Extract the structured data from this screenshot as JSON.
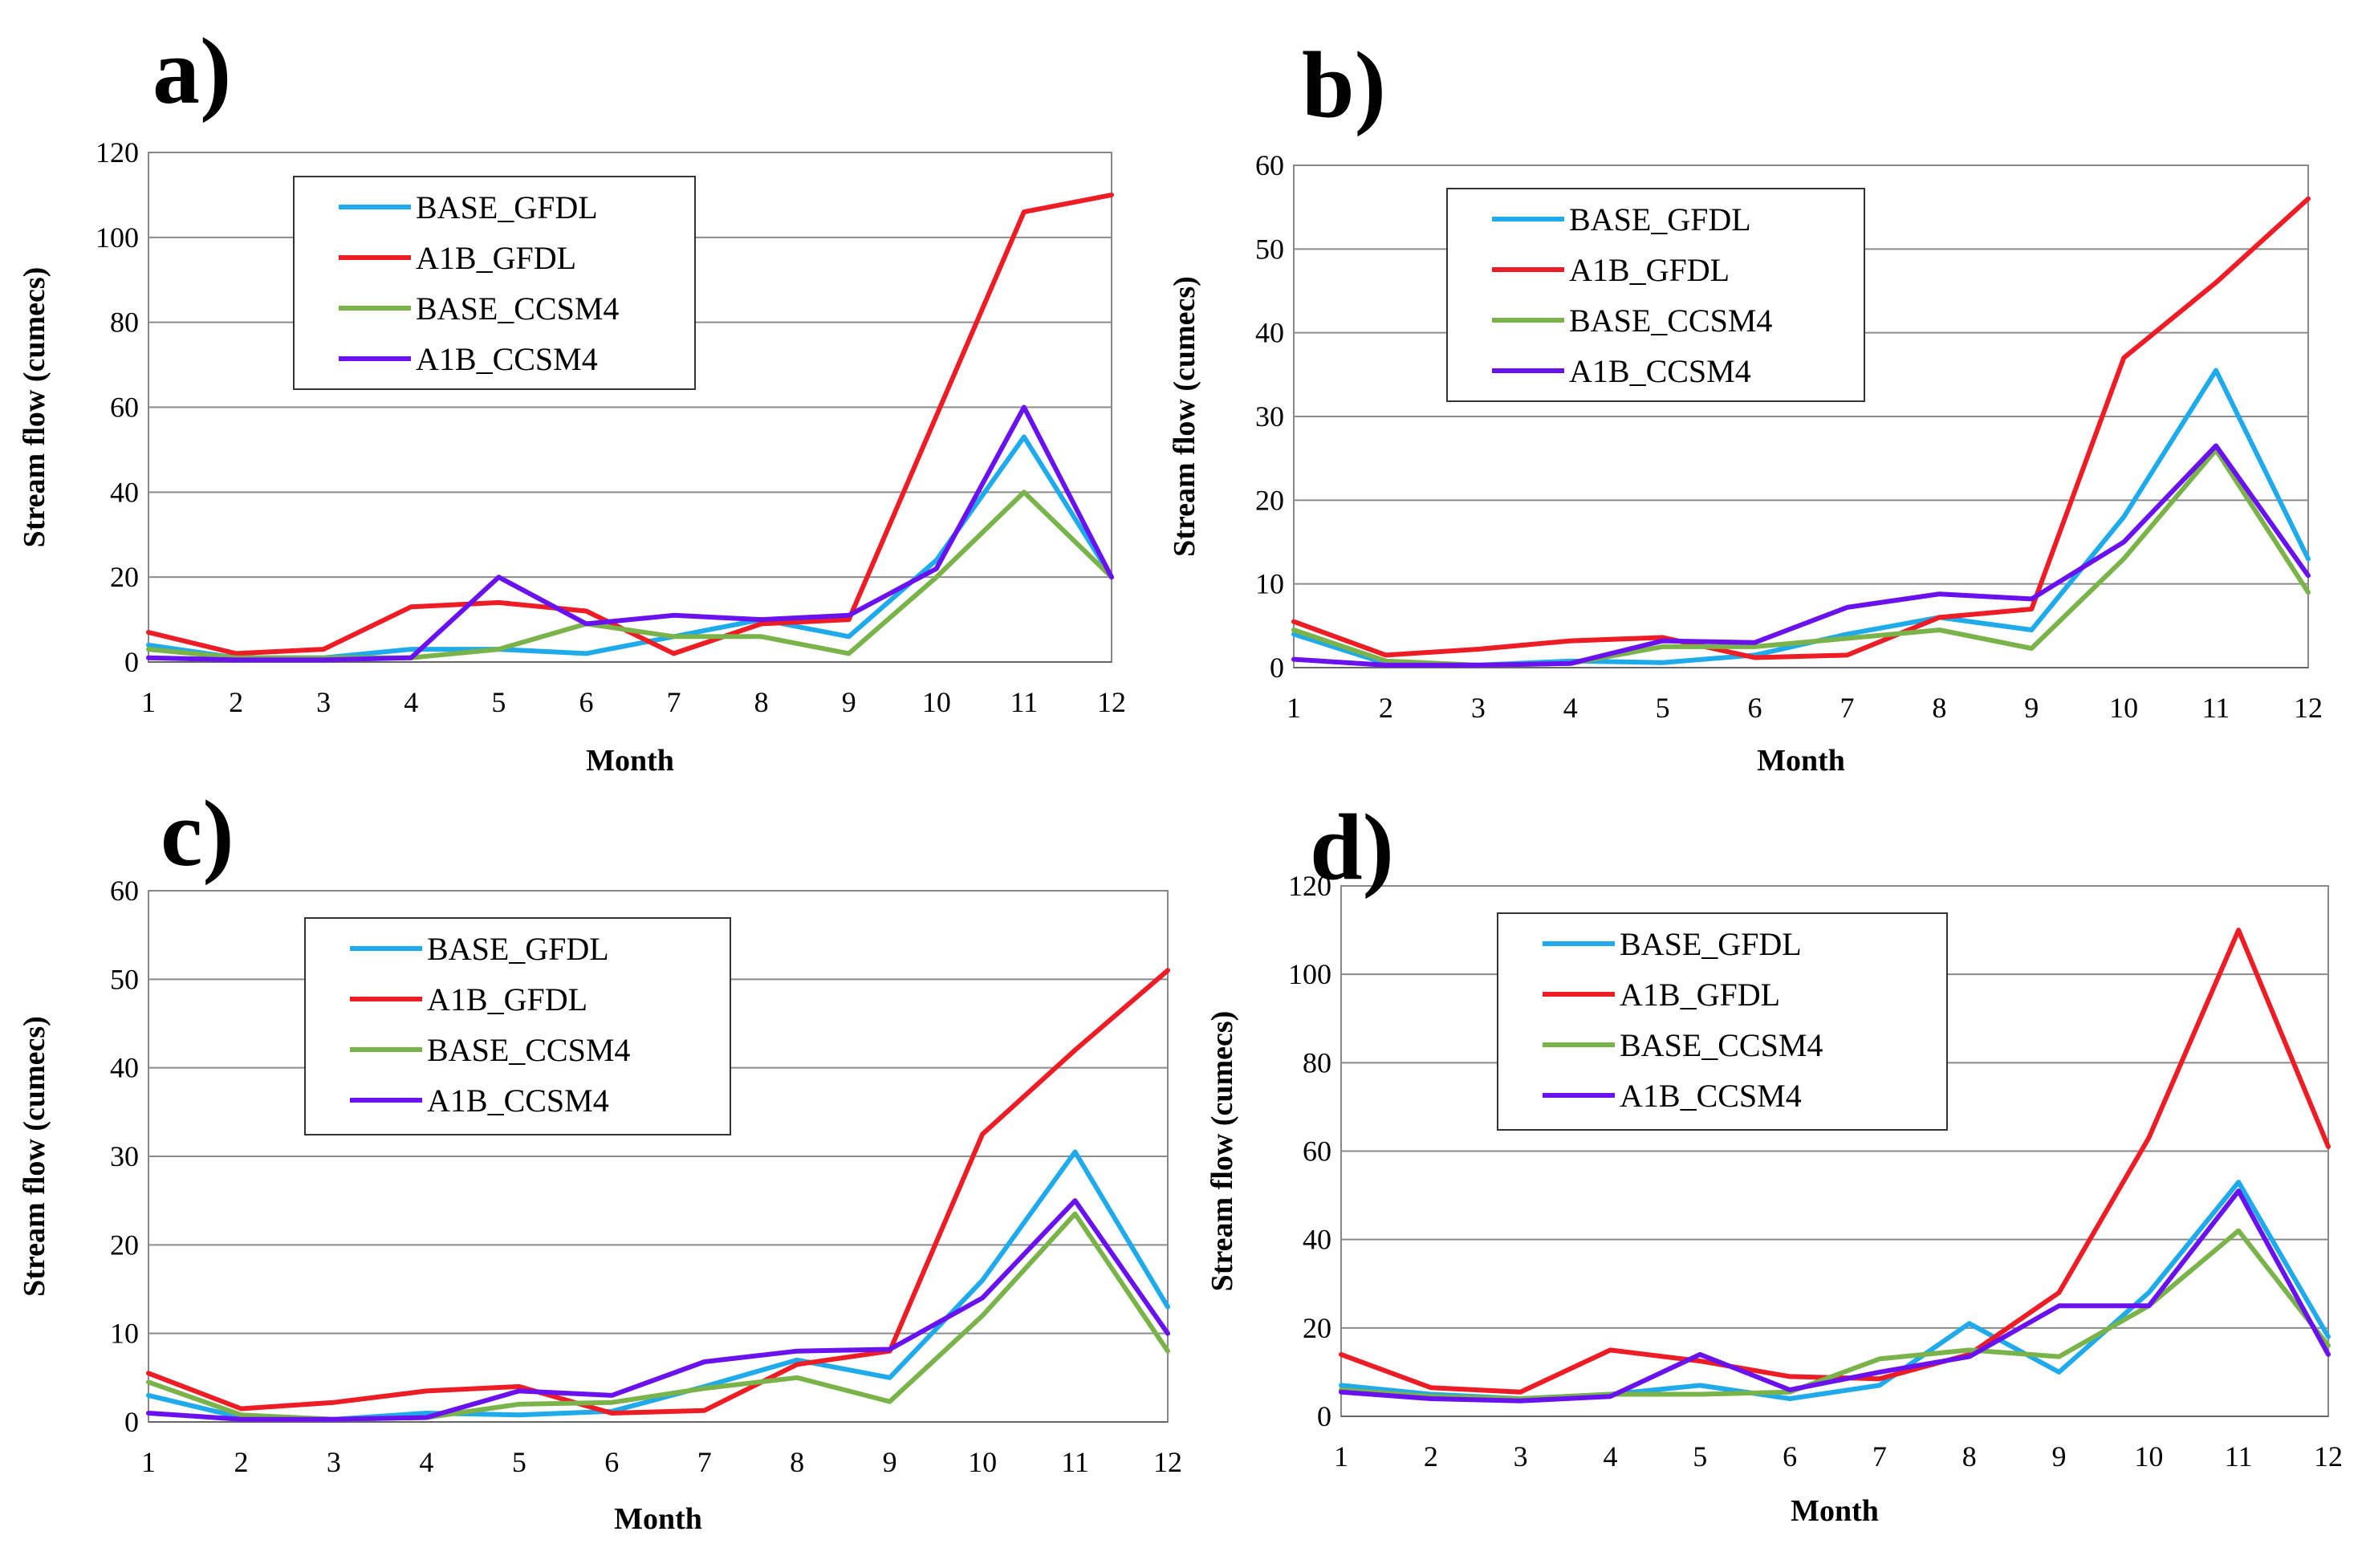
{
  "figure": {
    "series_colors": {
      "BASE_GFDL": "#1eaaeb",
      "A1B_GFDL": "#ee1c24",
      "BASE_CCSM4": "#7ab34a",
      "A1B_CCSM4": "#6a11f0"
    }
  },
  "chart_data": [
    {
      "type": "line",
      "panel": "a)",
      "xlabel": "Month",
      "ylabel": "Stream flow (cumecs)",
      "x": [
        1,
        2,
        3,
        4,
        5,
        6,
        7,
        8,
        9,
        10,
        11,
        12
      ],
      "xticks": [
        "1",
        "2",
        "3",
        "4",
        "5",
        "6",
        "7",
        "8",
        "9",
        "10",
        "11",
        "12"
      ],
      "ylim": [
        0,
        120
      ],
      "yticks": [
        "0",
        "20",
        "40",
        "60",
        "80",
        "100",
        "120"
      ],
      "grid": true,
      "legend_position": "top-left",
      "series": [
        {
          "name": "BASE_GFDL",
          "values": [
            4,
            1,
            1,
            3,
            3,
            2,
            6,
            10,
            6,
            24,
            53,
            20
          ]
        },
        {
          "name": "A1B_GFDL",
          "values": [
            7,
            2,
            3,
            13,
            14,
            12,
            2,
            9,
            10,
            58,
            106,
            110
          ]
        },
        {
          "name": "BASE_CCSM4",
          "values": [
            3,
            1,
            1,
            1,
            3,
            9,
            6,
            6,
            2,
            20,
            40,
            20
          ]
        },
        {
          "name": "A1B_CCSM4",
          "values": [
            1,
            0.5,
            0.5,
            1,
            20,
            9,
            11,
            10,
            11,
            22,
            60,
            20
          ]
        }
      ]
    },
    {
      "type": "line",
      "panel": "b)",
      "xlabel": "Month",
      "ylabel": "Stream flow (cumecs)",
      "x": [
        1,
        2,
        3,
        4,
        5,
        6,
        7,
        8,
        9,
        10,
        11,
        12
      ],
      "xticks": [
        "1",
        "2",
        "3",
        "4",
        "5",
        "6",
        "7",
        "8",
        "9",
        "10",
        "11",
        "12"
      ],
      "ylim": [
        0,
        60
      ],
      "yticks": [
        "0",
        "10",
        "20",
        "30",
        "40",
        "50",
        "60"
      ],
      "grid": true,
      "legend_position": "top-left",
      "series": [
        {
          "name": "BASE_GFDL",
          "values": [
            4,
            0.5,
            0.3,
            0.8,
            0.6,
            1.5,
            4,
            6,
            4.5,
            18,
            35.5,
            13
          ]
        },
        {
          "name": "A1B_GFDL",
          "values": [
            5.5,
            1.5,
            2.2,
            3.2,
            3.6,
            1.2,
            1.5,
            6,
            7,
            37,
            46,
            56
          ]
        },
        {
          "name": "BASE_CCSM4",
          "values": [
            4.5,
            0.8,
            0.3,
            0.5,
            2.5,
            2.5,
            3.5,
            4.5,
            2.3,
            13,
            26,
            9
          ]
        },
        {
          "name": "A1B_CCSM4",
          "values": [
            1,
            0.3,
            0.3,
            0.5,
            3.2,
            3,
            7.2,
            8.8,
            8.2,
            15,
            26.5,
            11
          ]
        }
      ]
    },
    {
      "type": "line",
      "panel": "c)",
      "xlabel": "Month",
      "ylabel": "Stream flow (cumecs)",
      "x": [
        1,
        2,
        3,
        4,
        5,
        6,
        7,
        8,
        9,
        10,
        11,
        12
      ],
      "xticks": [
        "1",
        "2",
        "3",
        "4",
        "5",
        "6",
        "7",
        "8",
        "9",
        "10",
        "11",
        "12"
      ],
      "ylim": [
        0,
        60
      ],
      "yticks": [
        "0",
        "10",
        "20",
        "30",
        "40",
        "50",
        "60"
      ],
      "grid": true,
      "legend_position": "top-center",
      "series": [
        {
          "name": "BASE_GFDL",
          "values": [
            3,
            0.5,
            0.3,
            1,
            0.8,
            1.2,
            4,
            7,
            5,
            16,
            30.5,
            13
          ]
        },
        {
          "name": "A1B_GFDL",
          "values": [
            5.5,
            1.5,
            2.2,
            3.5,
            4,
            1,
            1.3,
            6.5,
            8,
            32.5,
            42,
            51
          ]
        },
        {
          "name": "BASE_CCSM4",
          "values": [
            4.5,
            0.8,
            0.3,
            0.5,
            2,
            2.2,
            3.8,
            5,
            2.3,
            12,
            23.5,
            8
          ]
        },
        {
          "name": "A1B_CCSM4",
          "values": [
            1,
            0.3,
            0.3,
            0.5,
            3.5,
            3,
            6.8,
            8,
            8.2,
            14,
            25,
            10
          ]
        }
      ]
    },
    {
      "type": "line",
      "panel": "d)",
      "xlabel": "Month",
      "ylabel": "Stream flow (cumecs)",
      "x": [
        1,
        2,
        3,
        4,
        5,
        6,
        7,
        8,
        9,
        10,
        11,
        12
      ],
      "xticks": [
        "1",
        "2",
        "3",
        "4",
        "5",
        "6",
        "7",
        "8",
        "9",
        "10",
        "11",
        "12"
      ],
      "ylim": [
        0,
        120
      ],
      "yticks": [
        "0",
        "20",
        "40",
        "60",
        "80",
        "100",
        "120"
      ],
      "grid": true,
      "legend_position": "top-center",
      "series": [
        {
          "name": "BASE_GFDL",
          "values": [
            7,
            5,
            4,
            5,
            7,
            4,
            7,
            21,
            10,
            28,
            53,
            18
          ]
        },
        {
          "name": "A1B_GFDL",
          "values": [
            14,
            6.5,
            5.5,
            15,
            12.5,
            9,
            8.5,
            14,
            28,
            63,
            110,
            61
          ]
        },
        {
          "name": "BASE_CCSM4",
          "values": [
            6,
            4.5,
            4,
            5,
            5,
            5.5,
            13,
            15,
            13.5,
            25,
            42,
            16
          ]
        },
        {
          "name": "A1B_CCSM4",
          "values": [
            5.5,
            4,
            3.5,
            4.5,
            14,
            6,
            10,
            13.5,
            25,
            25,
            51,
            14
          ]
        }
      ]
    }
  ]
}
